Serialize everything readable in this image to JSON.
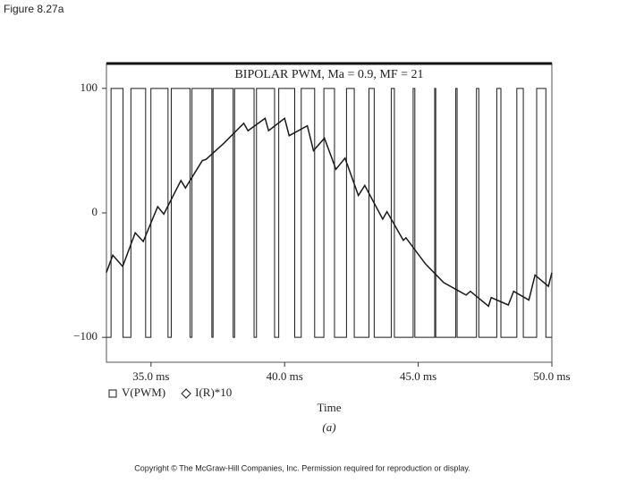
{
  "figure_label": "Figure 8.27a",
  "copyright": "Copyright © The McGraw-Hill Companies, Inc. Permission required for reproduction or display.",
  "chart_data": {
    "type": "line",
    "title": "BIPOLAR PWM, Ma = 0.9, MF = 21",
    "x_label": "Time",
    "panel_label": "(a)",
    "xlim": [
      33.333,
      50
    ],
    "ylim": [
      -120,
      120
    ],
    "xticks": [
      {
        "value": 35,
        "label": "35.0 ms"
      },
      {
        "value": 40,
        "label": "40.0 ms"
      },
      {
        "value": 45,
        "label": "45.0 ms"
      },
      {
        "value": 50,
        "label": "50.0 ms"
      }
    ],
    "yticks": [
      {
        "value": 100,
        "label": "100"
      },
      0,
      {
        "value": -100,
        "label": "−100"
      }
    ],
    "grid": false,
    "series": [
      {
        "name": "V(PWM)",
        "color": "#1a1a1a",
        "marker": "square",
        "x": [
          33.333,
          33.505,
          33.505,
          33.955,
          33.955,
          34.248,
          34.248,
          34.8,
          34.8,
          34.997,
          34.997,
          35.637,
          35.637,
          35.758,
          35.758,
          36.464,
          36.464,
          36.533,
          36.533,
          37.278,
          37.278,
          37.322,
          37.322,
          38.075,
          38.075,
          38.128,
          38.128,
          38.857,
          38.857,
          38.948,
          38.948,
          39.624,
          39.624,
          39.78,
          39.78,
          40.378,
          40.378,
          40.622,
          40.622,
          41.124,
          41.124,
          41.469,
          41.469,
          41.866,
          41.866,
          42.315,
          42.315,
          42.606,
          42.606,
          43.156,
          43.156,
          43.352,
          43.352,
          43.99,
          43.99,
          44.107,
          44.107,
          44.809,
          44.809,
          44.873,
          44.873,
          45.615,
          45.615,
          45.655,
          45.655,
          46.405,
          46.405,
          46.454,
          46.454,
          47.179,
          47.179,
          47.266,
          47.266,
          47.939,
          47.939,
          48.093,
          48.093,
          48.689,
          48.689,
          48.931,
          48.931,
          49.431,
          49.431,
          49.775,
          49.775,
          50
        ],
        "values": [
          -100,
          -100,
          100,
          100,
          -100,
          -100,
          100,
          100,
          -100,
          -100,
          100,
          100,
          -100,
          -100,
          100,
          100,
          -100,
          -100,
          100,
          100,
          -100,
          -100,
          100,
          100,
          -100,
          -100,
          100,
          100,
          -100,
          -100,
          100,
          100,
          -100,
          -100,
          100,
          100,
          -100,
          -100,
          100,
          100,
          -100,
          -100,
          100,
          100,
          -100,
          -100,
          100,
          100,
          -100,
          -100,
          100,
          100,
          -100,
          -100,
          100,
          100,
          -100,
          -100,
          100,
          100,
          -100,
          -100,
          100,
          100,
          -100,
          -100,
          100,
          100,
          -100,
          -100,
          100,
          100,
          -100,
          -100,
          100,
          100,
          -100,
          -100,
          100,
          100,
          -100,
          -100,
          100,
          100,
          -100,
          -100
        ]
      },
      {
        "name": "I(R)*10",
        "color": "#1a1a1a",
        "marker": "diamond",
        "x": [
          33.33,
          33.57,
          33.94,
          34.41,
          34.71,
          35.25,
          35.48,
          36.12,
          36.29,
          36.92,
          37.06,
          37.73,
          38.47,
          38.63,
          39.27,
          39.4,
          40.0,
          40.17,
          40.85,
          41.08,
          41.49,
          41.92,
          42.26,
          42.76,
          43.0,
          43.67,
          43.83,
          44.44,
          44.54,
          45.27,
          45.95,
          46.79,
          46.95,
          47.63,
          47.73,
          48.37,
          48.57,
          49.14,
          49.37,
          49.87,
          50.0
        ],
        "values": [
          -48,
          -34,
          -43,
          -16,
          -23,
          5,
          -1,
          26,
          20,
          42,
          43,
          56,
          72,
          66,
          76,
          66,
          76,
          62,
          70,
          50,
          60,
          35,
          44,
          14,
          22,
          -5,
          1,
          -22,
          -20,
          -41,
          -56,
          -66,
          -63,
          -75,
          -68,
          -74,
          -63,
          -70,
          -50,
          -59,
          -48
        ]
      }
    ]
  }
}
